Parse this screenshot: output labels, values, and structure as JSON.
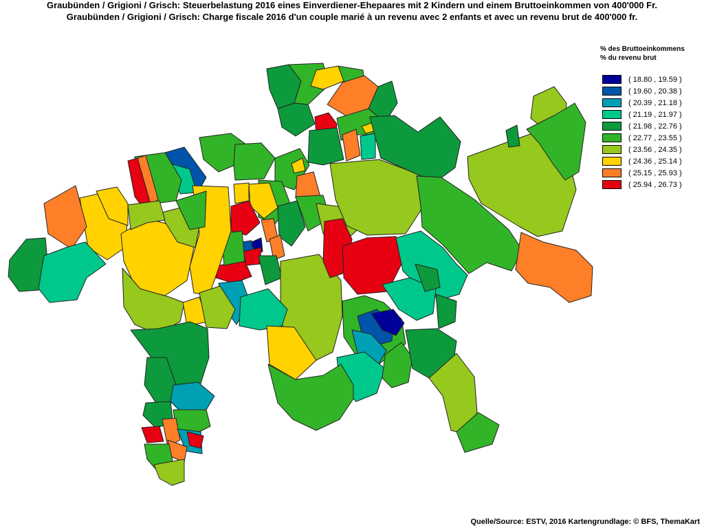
{
  "title": {
    "line1": "Graubünden / Grigioni / Grisch: Steuerbelastung 2016 eines Einverdiener-Ehepaares mit 2 Kindern und einem Bruttoeinkommen von 400'000 Fr.",
    "line2": "Graubünden / Grigioni / Grisch: Charge fiscale 2016 d'un couple marié à un revenu avec 2 enfants et avec un revenu brut de 400'000 fr."
  },
  "legend": {
    "title_de": "% des Bruttoeinkommens",
    "title_fr": "% du revenu brut",
    "items": [
      {
        "label": "( 18.80 , 19.59 )",
        "color": "#000099"
      },
      {
        "label": "( 19.60 , 20.38 )",
        "color": "#0055aa"
      },
      {
        "label": "( 20.39 , 21.18 )",
        "color": "#00a0b4"
      },
      {
        "label": "( 21.19 , 21.97 )",
        "color": "#00c88c"
      },
      {
        "label": "( 21.98 , 22.76 )",
        "color": "#0c9a3c"
      },
      {
        "label": "( 22.77 , 23.55 )",
        "color": "#32b428"
      },
      {
        "label": "( 23.56 , 24.35 )",
        "color": "#96c81e"
      },
      {
        "label": "( 24.36 , 25.14 )",
        "color": "#ffd200"
      },
      {
        "label": "( 25.15 , 25.93 )",
        "color": "#ff7f28"
      },
      {
        "label": "( 25.94 , 26.73 )",
        "color": "#e60012"
      }
    ]
  },
  "source": "Quelle/Source: ESTV, 2016 Kartengrundlage: © BFS, ThemaKart"
}
